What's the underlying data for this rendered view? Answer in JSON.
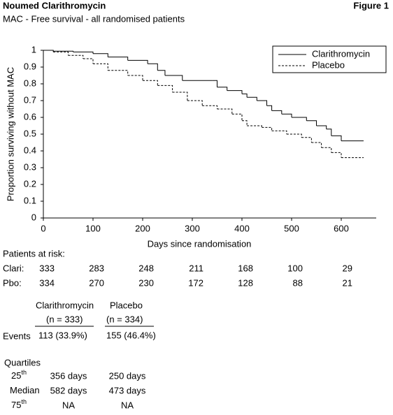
{
  "header": {
    "title": "Noumed Clarithromycin",
    "figure": "Figure 1"
  },
  "chart_data": {
    "type": "step",
    "subtitle": "MAC - Free survival - all randomised patients",
    "x_label": "Days since randomisation",
    "y_label": "Proportion surviving without MAC",
    "xlim": [
      0,
      670
    ],
    "xticks": [
      0,
      100,
      200,
      300,
      400,
      500,
      600
    ],
    "ylim": [
      0,
      1
    ],
    "yticks": [
      0,
      0.1,
      0.2,
      0.3,
      0.4,
      0.5,
      0.6,
      0.7,
      0.8,
      0.9,
      1
    ],
    "legend": "upper right",
    "series": [
      {
        "name": "Clarithromycin",
        "color": "#000000",
        "dash": "solid",
        "x": [
          0,
          20,
          60,
          100,
          130,
          170,
          210,
          230,
          245,
          280,
          340,
          350,
          370,
          400,
          410,
          430,
          450,
          460,
          480,
          500,
          530,
          550,
          570,
          580,
          600,
          645
        ],
        "values": [
          1,
          0.995,
          0.99,
          0.98,
          0.96,
          0.94,
          0.92,
          0.88,
          0.85,
          0.82,
          0.82,
          0.78,
          0.76,
          0.74,
          0.72,
          0.7,
          0.67,
          0.64,
          0.62,
          0.6,
          0.58,
          0.55,
          0.53,
          0.49,
          0.46,
          0.46
        ]
      },
      {
        "name": "Placebo",
        "color": "#000000",
        "dash": "dashed",
        "x": [
          0,
          20,
          50,
          80,
          100,
          130,
          170,
          200,
          230,
          260,
          290,
          320,
          350,
          380,
          400,
          410,
          440,
          460,
          490,
          520,
          540,
          560,
          580,
          600,
          645
        ],
        "values": [
          1,
          0.99,
          0.97,
          0.95,
          0.92,
          0.88,
          0.85,
          0.82,
          0.79,
          0.75,
          0.7,
          0.67,
          0.65,
          0.62,
          0.58,
          0.55,
          0.54,
          0.52,
          0.5,
          0.48,
          0.45,
          0.42,
          0.39,
          0.36,
          0.36
        ]
      }
    ]
  },
  "at_risk": {
    "title": "Patients at risk:",
    "rows": [
      {
        "label": "Clari:",
        "values": [
          333,
          283,
          248,
          211,
          168,
          100,
          29
        ]
      },
      {
        "label": "Pbo:",
        "values": [
          334,
          270,
          230,
          172,
          128,
          88,
          21
        ]
      }
    ]
  },
  "events": {
    "columns": [
      {
        "name": "Clarithromycin",
        "n": "(n = 333)"
      },
      {
        "name": "Placebo",
        "n": "(n = 334)"
      }
    ],
    "label": "Events",
    "values": [
      "113 (33.9%)",
      "155 (46.4%)"
    ]
  },
  "quartiles": {
    "title": "Quartiles",
    "rows": [
      {
        "label": "25",
        "sup": "th",
        "values": [
          "356 days",
          "250 days"
        ]
      },
      {
        "label": "Median",
        "values": [
          "582 days",
          "473 days"
        ]
      },
      {
        "label": "75",
        "sup": "th",
        "values": [
          "NA",
          "NA"
        ]
      }
    ]
  }
}
